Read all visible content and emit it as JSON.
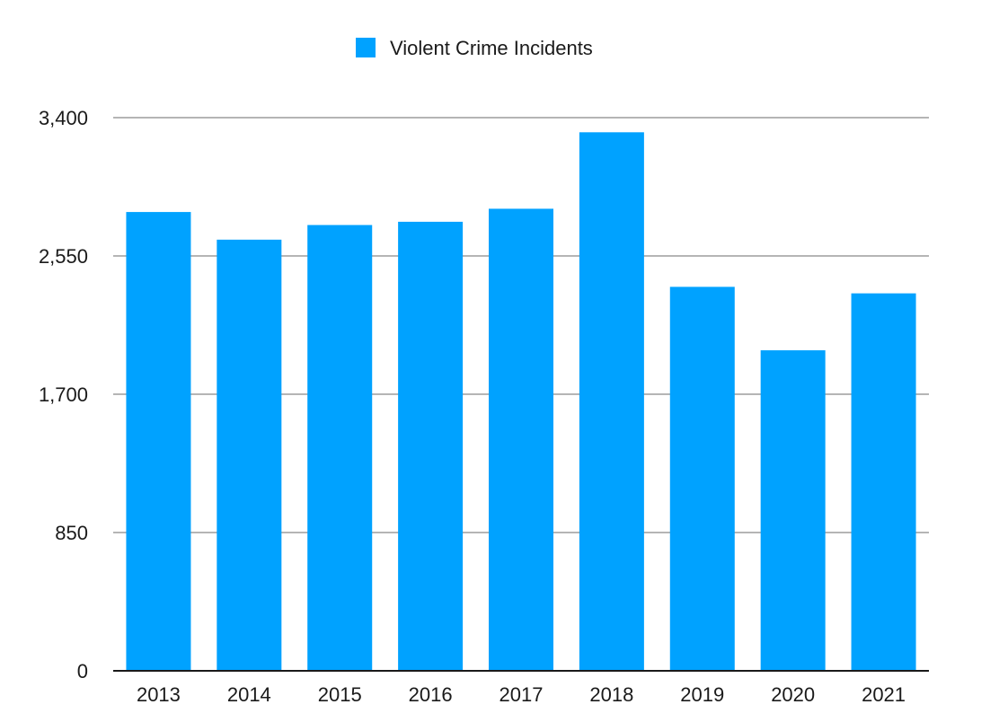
{
  "chart_data": {
    "type": "bar",
    "categories": [
      "2013",
      "2014",
      "2015",
      "2016",
      "2017",
      "2018",
      "2019",
      "2020",
      "2021"
    ],
    "series": [
      {
        "name": "Violent Crime Incidents",
        "color": "#00a2ff",
        "values": [
          2820,
          2650,
          2740,
          2760,
          2840,
          3310,
          2360,
          1970,
          2320
        ]
      }
    ],
    "y_ticks": [
      "0",
      "850",
      "1,700",
      "2,550",
      "3,400"
    ],
    "ylim": [
      0,
      3400
    ],
    "grid": true,
    "legend_position": "top-center",
    "title": "",
    "xlabel": "",
    "ylabel": ""
  }
}
